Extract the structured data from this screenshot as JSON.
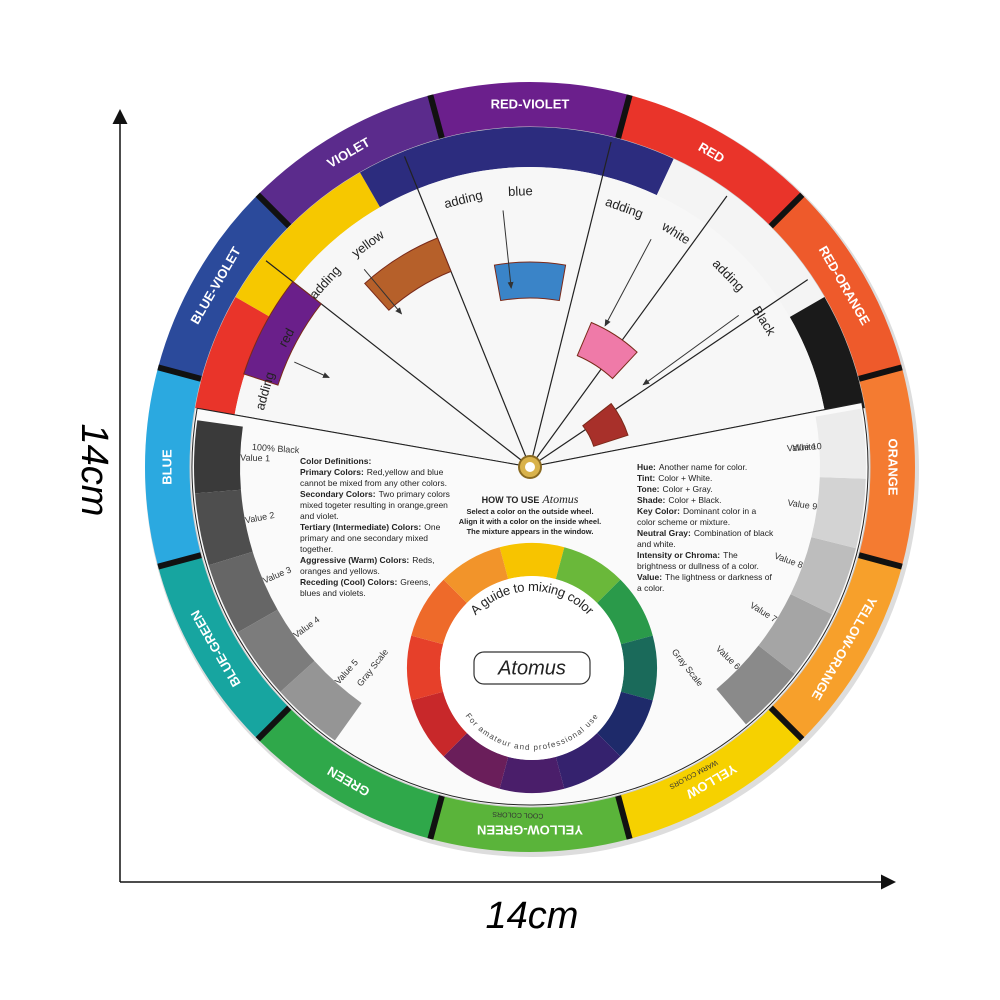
{
  "ring_labels": [
    "RED-VIOLET",
    "RED",
    "RED-ORANGE",
    "ORANGE",
    "YELLOW-ORANGE",
    "YELLOW",
    "YELLOW-GREEN",
    "GREEN",
    "BLUE-GREEN",
    "BLUE",
    "BLUE-VIOLET",
    "VIOLET"
  ],
  "windows": [
    {
      "adding": "adding",
      "color": "red"
    },
    {
      "adding": "adding",
      "color": "yellow"
    },
    {
      "adding": "adding",
      "color": "blue"
    },
    {
      "adding": "adding",
      "color": "white"
    },
    {
      "adding": "adding",
      "color": "Black"
    }
  ],
  "gray_scale": {
    "left": [
      "Value 1",
      "Value 2",
      "Value 3",
      "Value 4",
      "Value 5"
    ],
    "left_top": "100% Black",
    "left_caption": "Gray Scale",
    "right": [
      "Value 6",
      "Value 7",
      "Value 8",
      "Value 9",
      "Value 10"
    ],
    "right_top": "White",
    "right_caption": "Gray Scale"
  },
  "definitions": {
    "title": "Color Definitions:",
    "items": [
      {
        "term": "Primary Colors:",
        "text": "Red,yellow and blue cannot be mixed from any other colors."
      },
      {
        "term": "Secondary Colors:",
        "text": "Two primary colors mixed togeter resulting in orange,green and violet."
      },
      {
        "term": "Tertiary (Intermediate) Colors:",
        "text": "One primary and one secondary mixed together."
      },
      {
        "term": "Aggressive (Warm) Colors:",
        "text": "Reds, oranges and yellows."
      },
      {
        "term": "Receding (Cool) Colors:",
        "text": "Greens, blues and violets."
      }
    ]
  },
  "how_to": {
    "title": "HOW TO USE",
    "brand": "Atomus",
    "lines": [
      "Select a color on the outside wheel.",
      "Align it with a color on the inside wheel.",
      "The mixture appears in the window."
    ]
  },
  "glossary": {
    "items": [
      {
        "term": "Hue:",
        "text": "Another name for color."
      },
      {
        "term": "Tint:",
        "text": "Color + White."
      },
      {
        "term": "Tone:",
        "text": "Color + Gray."
      },
      {
        "term": "Shade:",
        "text": "Color + Black."
      },
      {
        "term": "Key Color:",
        "text": "Dominant color in a color scheme or mixture."
      },
      {
        "term": "Neutral Gray:",
        "text": "Combination of black and white."
      },
      {
        "term": "Intensity or Chroma:",
        "text": "The brightness or dullness of a color."
      },
      {
        "term": "Value:",
        "text": "The lightness or darkness of a color."
      }
    ]
  },
  "guide": {
    "title": "A guide to mixing color",
    "brand": "Atomus",
    "tagline": "For amateur and professional use"
  },
  "warm": "WARM COLORS",
  "cool": "COOL COLORS",
  "dimensions": {
    "height": "14cm",
    "width": "14cm"
  }
}
